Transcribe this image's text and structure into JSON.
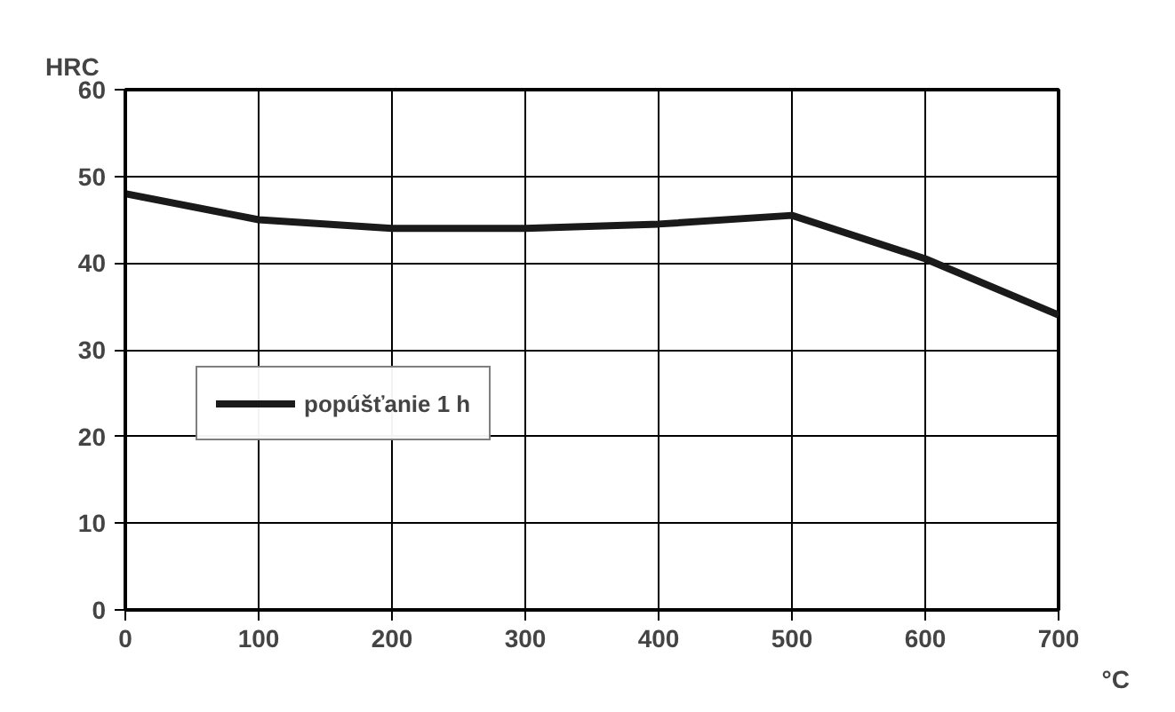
{
  "chart_data": {
    "type": "line",
    "xlabel": "°C",
    "ylabel": "HRC",
    "x": [
      0,
      100,
      200,
      300,
      400,
      500,
      600,
      700
    ],
    "series": [
      {
        "name": "popúšťanie 1 h",
        "color": "#1a1a1a",
        "values": [
          48,
          45,
          44,
          44,
          44.5,
          45.5,
          40.5,
          34
        ]
      }
    ],
    "xlim": [
      0,
      700
    ],
    "ylim": [
      0,
      60
    ],
    "xticks": [
      0,
      100,
      200,
      300,
      400,
      500,
      600,
      700
    ],
    "yticks": [
      0,
      10,
      20,
      30,
      40,
      50,
      60
    ],
    "grid": true,
    "legend": "left",
    "marker": "none",
    "line_style": "solid"
  }
}
